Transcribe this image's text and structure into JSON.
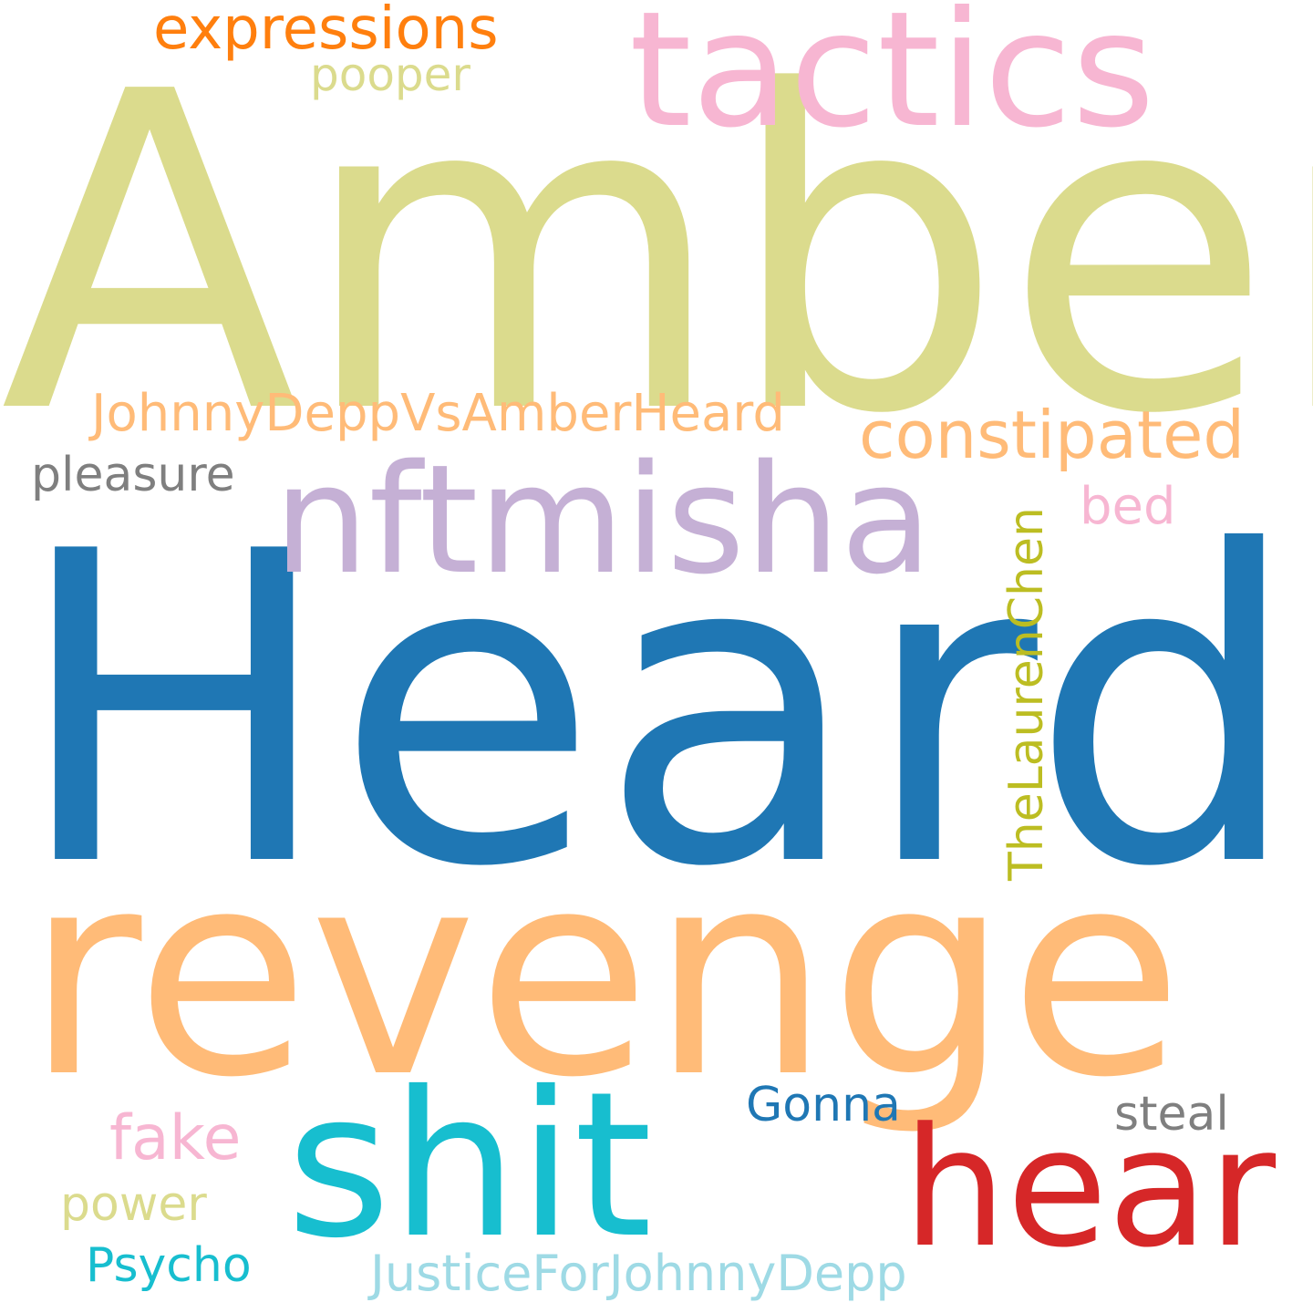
{
  "words": [
    {
      "text": "Amber",
      "color": "#dbdb8d"
    },
    {
      "text": "Heard",
      "color": "#1f77b4"
    },
    {
      "text": "revenge",
      "color": "#ffbb78"
    },
    {
      "text": "tactics",
      "color": "#f7b6d2"
    },
    {
      "text": "nftmisha",
      "color": "#c5b0d5"
    },
    {
      "text": "shit",
      "color": "#17becf"
    },
    {
      "text": "hear",
      "color": "#d62728"
    },
    {
      "text": "expressions",
      "color": "#ff7f0e"
    },
    {
      "text": "pooper",
      "color": "#dbdb8d"
    },
    {
      "text": "JohnnyDeppVsAmberHeard",
      "color": "#ffbb78"
    },
    {
      "text": "constipated",
      "color": "#ffbb78"
    },
    {
      "text": "pleasure",
      "color": "#7f7f7f"
    },
    {
      "text": "bed",
      "color": "#f7b6d2"
    },
    {
      "text": "TheLaurenChen",
      "color": "#bcbd22"
    },
    {
      "text": "Gonna",
      "color": "#1f77b4"
    },
    {
      "text": "steal",
      "color": "#7f7f7f"
    },
    {
      "text": "fake",
      "color": "#f7b6d2"
    },
    {
      "text": "power",
      "color": "#dbdb8d"
    },
    {
      "text": "Psycho",
      "color": "#17becf"
    },
    {
      "text": "JusticeForJohnnyDepp",
      "color": "#9edae5"
    }
  ]
}
